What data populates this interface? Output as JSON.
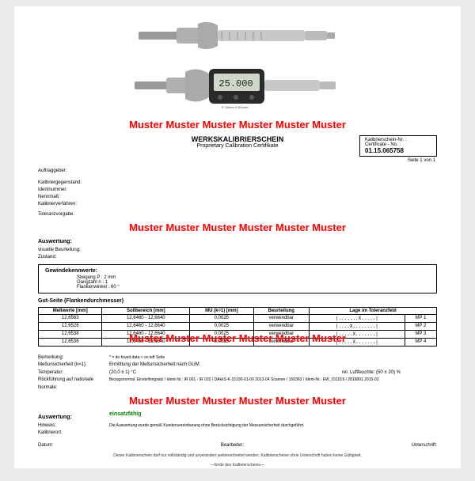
{
  "muster_text": "Muster Muster Muster Muster Muster Muster",
  "muster_text2": "Muster Muster  Muster Muster Muster Muster",
  "doc": {
    "title": "WERKSKALIBRIERSCHEIN",
    "subtitle": "Proprietary Calibration Certifikate",
    "cert_label": "Kalibrierschein-Nr. :",
    "cert_label2": "Certificate - No. :",
    "cert_no": "01.15.065758",
    "page": "Seite 1 von 1"
  },
  "fields1": {
    "auftraggeber": "Auftraggeber:",
    "kalibriergegenstand": "Kalibriergegenstand:",
    "identnummer": "Identnummer:",
    "nennmass": "Nennmaß:",
    "kalibrierverfahren": "Kalibrierverfahren:"
  },
  "fields2": {
    "toleranzvorgabe": "Toleranzvorgabe:"
  },
  "auswertung": {
    "title": "Auswertung:",
    "visuelle": "visuelle Beurteilung:",
    "zustand": "Zustand:"
  },
  "gewinde": {
    "title": "Gewindekennwerte:",
    "steigung_l": "Steigung P :",
    "steigung_v": "2 mm",
    "gangzahl_l": "Gangzahl n :",
    "gangzahl_v": "1",
    "flankenwinkel_l": "Flankenwinkel :",
    "flankenwinkel_v": "60 °"
  },
  "gut": {
    "title": "Gut-Seite (Flankendurchmesser)",
    "headers": [
      "Meßwerte [mm]",
      "Sollbereich [mm]",
      "MU (k=1) [mm]",
      "Beurteilung",
      "Lage im Toleranzfeld"
    ],
    "rows": [
      [
        "12,6563",
        "12,6460 - 12,6640",
        "0,0025",
        "verwendbar",
        "|.......X.....|",
        "MP 1"
      ],
      [
        "12,6526",
        "12,6460 - 12,6640",
        "0,0025",
        "verwendbar",
        "|....X........|",
        "MP 2"
      ],
      [
        "12,6538",
        "12,6460 - 12,6640",
        "0,0025",
        "verwendbar",
        "|.....X.......|",
        "MP 3"
      ],
      [
        "12,6536",
        "12,6460 - 12,6640",
        "0,0025",
        "verwendbar",
        "|.....X.......|",
        "MP 4"
      ]
    ]
  },
  "footer": {
    "bemerkung_l": "Bemerkung:",
    "bemerkung_v": "* = do found data > on left Seite",
    "mu_l": "Meßunsicherheit (k=1):",
    "mu_v": "Ermittlung der Meßunsicherheit nach GUM",
    "temp_l": "Temperatur:",
    "temp_v": "(20,0 ± 1) °C",
    "luft_l": "rel. Luftfeuchte:",
    "luft_v": "(50 ± 20) %",
    "ruck_l": "Rückführung auf nationale Normale:",
    "ruck_v": "Bezugsnormal: Einstellringsatz / Ident-Nr.: IR 001 - IR 020 / DAkkS-K-15190-01-00 2013-04 Scanner / 150363 / Ident-Nr.: EW_151019 / 2816801 2015-03",
    "auswertung_l": "Auswertung:",
    "auswertung_v": "einsatzfähig",
    "hinweis_l": "Hinweis:",
    "hinweis_v": "Die Auswertung wurde gemäß Kundenvereinbarung ohne Berücksichtigung der Messunsicherheit durchgeführt.",
    "kalibrierort_l": "Kalibrierort:",
    "datum": "Datum:",
    "bearbeiter": "Bearbeiter:",
    "unterschrift": "Unterschrift:",
    "disclaimer": "Dieser Kalibrierschein darf nur vollständig und unverändert weiterverbreitet werden. Kalibrierscheine ohne Unterschrift haben keine Gültigkeit.",
    "disclaimer2": "—Ende des Kalibrierscheins—"
  }
}
